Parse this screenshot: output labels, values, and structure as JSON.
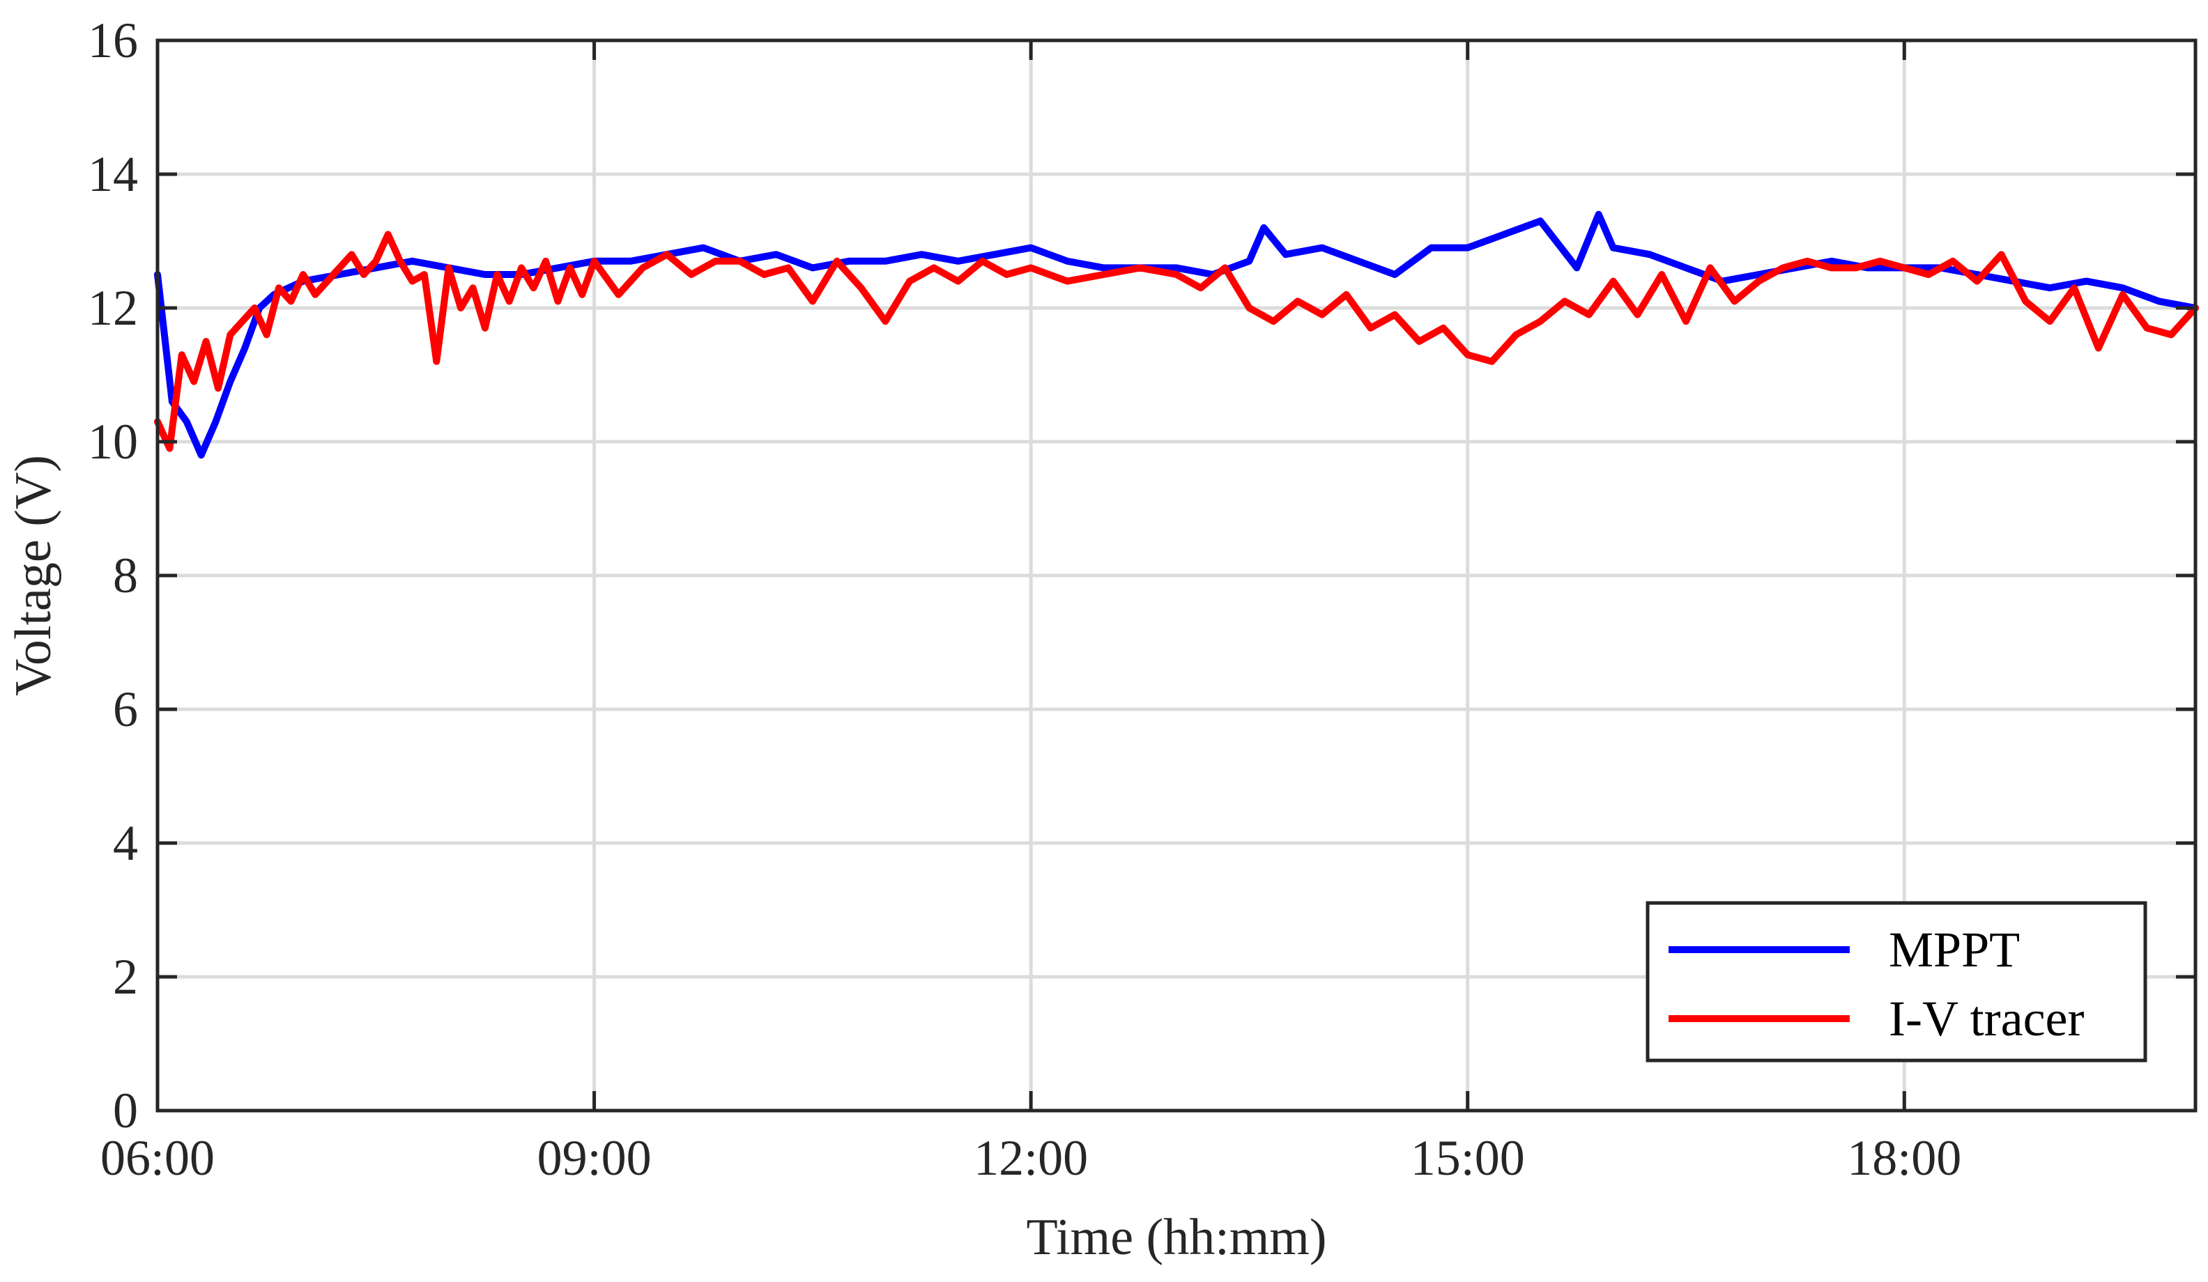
{
  "chart_data": {
    "type": "line",
    "xlabel": "Time (hh:mm)",
    "ylabel": "Voltage (V)",
    "xlim": [
      "06:00",
      "20:00"
    ],
    "ylim": [
      0,
      16
    ],
    "x_ticks": [
      "06:00",
      "09:00",
      "12:00",
      "15:00",
      "18:00"
    ],
    "y_ticks": [
      "0",
      "2",
      "4",
      "6",
      "8",
      "10",
      "12",
      "14",
      "16"
    ],
    "grid": true,
    "legend_position": "bottom-right",
    "series": [
      {
        "name": "MPPT",
        "color": "#0000ff",
        "x": [
          "06:00",
          "06:06",
          "06:12",
          "06:18",
          "06:24",
          "06:30",
          "06:36",
          "06:42",
          "06:48",
          "06:54",
          "07:00",
          "07:15",
          "07:30",
          "07:45",
          "08:00",
          "08:15",
          "08:30",
          "08:45",
          "09:00",
          "09:15",
          "09:30",
          "09:45",
          "10:00",
          "10:15",
          "10:30",
          "10:45",
          "11:00",
          "11:15",
          "11:30",
          "11:45",
          "12:00",
          "12:15",
          "12:30",
          "12:45",
          "13:00",
          "13:15",
          "13:30",
          "13:36",
          "13:45",
          "14:00",
          "14:15",
          "14:30",
          "14:45",
          "15:00",
          "15:15",
          "15:30",
          "15:45",
          "15:54",
          "16:00",
          "16:15",
          "16:30",
          "16:45",
          "17:00",
          "17:15",
          "17:30",
          "17:45",
          "18:00",
          "18:15",
          "18:30",
          "18:45",
          "19:00",
          "19:15",
          "19:30",
          "19:45",
          "20:00"
        ],
        "values": [
          12.5,
          10.6,
          10.3,
          9.8,
          10.3,
          10.9,
          11.4,
          12.0,
          12.2,
          12.3,
          12.4,
          12.5,
          12.6,
          12.7,
          12.6,
          12.5,
          12.5,
          12.6,
          12.7,
          12.7,
          12.8,
          12.9,
          12.7,
          12.8,
          12.6,
          12.7,
          12.7,
          12.8,
          12.7,
          12.8,
          12.9,
          12.7,
          12.6,
          12.6,
          12.6,
          12.5,
          12.7,
          13.2,
          12.8,
          12.9,
          12.7,
          12.5,
          12.9,
          12.9,
          13.1,
          13.3,
          12.6,
          13.4,
          12.9,
          12.8,
          12.6,
          12.4,
          12.5,
          12.6,
          12.7,
          12.6,
          12.6,
          12.6,
          12.5,
          12.4,
          12.3,
          12.4,
          12.3,
          12.1,
          12.0
        ]
      },
      {
        "name": "I-V tracer",
        "color": "#ff0000",
        "x": [
          "06:00",
          "06:05",
          "06:10",
          "06:15",
          "06:20",
          "06:25",
          "06:30",
          "06:35",
          "06:40",
          "06:45",
          "06:50",
          "06:55",
          "07:00",
          "07:05",
          "07:10",
          "07:15",
          "07:20",
          "07:25",
          "07:30",
          "07:35",
          "07:40",
          "07:45",
          "07:50",
          "07:55",
          "08:00",
          "08:05",
          "08:10",
          "08:15",
          "08:20",
          "08:25",
          "08:30",
          "08:35",
          "08:40",
          "08:45",
          "08:50",
          "08:55",
          "09:00",
          "09:10",
          "09:20",
          "09:30",
          "09:40",
          "09:50",
          "10:00",
          "10:10",
          "10:20",
          "10:30",
          "10:40",
          "10:50",
          "11:00",
          "11:10",
          "11:20",
          "11:30",
          "11:40",
          "11:50",
          "12:00",
          "12:15",
          "12:30",
          "12:45",
          "13:00",
          "13:10",
          "13:20",
          "13:30",
          "13:40",
          "13:50",
          "14:00",
          "14:10",
          "14:20",
          "14:30",
          "14:40",
          "14:50",
          "15:00",
          "15:10",
          "15:20",
          "15:30",
          "15:40",
          "15:50",
          "16:00",
          "16:10",
          "16:20",
          "16:30",
          "16:40",
          "16:50",
          "17:00",
          "17:10",
          "17:20",
          "17:30",
          "17:40",
          "17:50",
          "18:00",
          "18:10",
          "18:20",
          "18:30",
          "18:40",
          "18:50",
          "19:00",
          "19:10",
          "19:20",
          "19:30",
          "19:40",
          "19:50",
          "20:00"
        ],
        "values": [
          10.3,
          9.9,
          11.3,
          10.9,
          11.5,
          10.8,
          11.6,
          11.8,
          12.0,
          11.6,
          12.3,
          12.1,
          12.5,
          12.2,
          12.4,
          12.6,
          12.8,
          12.5,
          12.7,
          13.1,
          12.7,
          12.4,
          12.5,
          11.2,
          12.6,
          12.0,
          12.3,
          11.7,
          12.5,
          12.1,
          12.6,
          12.3,
          12.7,
          12.1,
          12.6,
          12.2,
          12.7,
          12.2,
          12.6,
          12.8,
          12.5,
          12.7,
          12.7,
          12.5,
          12.6,
          12.1,
          12.7,
          12.3,
          11.8,
          12.4,
          12.6,
          12.4,
          12.7,
          12.5,
          12.6,
          12.4,
          12.5,
          12.6,
          12.5,
          12.3,
          12.6,
          12.0,
          11.8,
          12.1,
          11.9,
          12.2,
          11.7,
          11.9,
          11.5,
          11.7,
          11.3,
          11.2,
          11.6,
          11.8,
          12.1,
          11.9,
          12.4,
          11.9,
          12.5,
          11.8,
          12.6,
          12.1,
          12.4,
          12.6,
          12.7,
          12.6,
          12.6,
          12.7,
          12.6,
          12.5,
          12.7,
          12.4,
          12.8,
          12.1,
          11.8,
          12.3,
          11.4,
          12.2,
          11.7,
          11.6,
          12.0
        ]
      }
    ]
  }
}
